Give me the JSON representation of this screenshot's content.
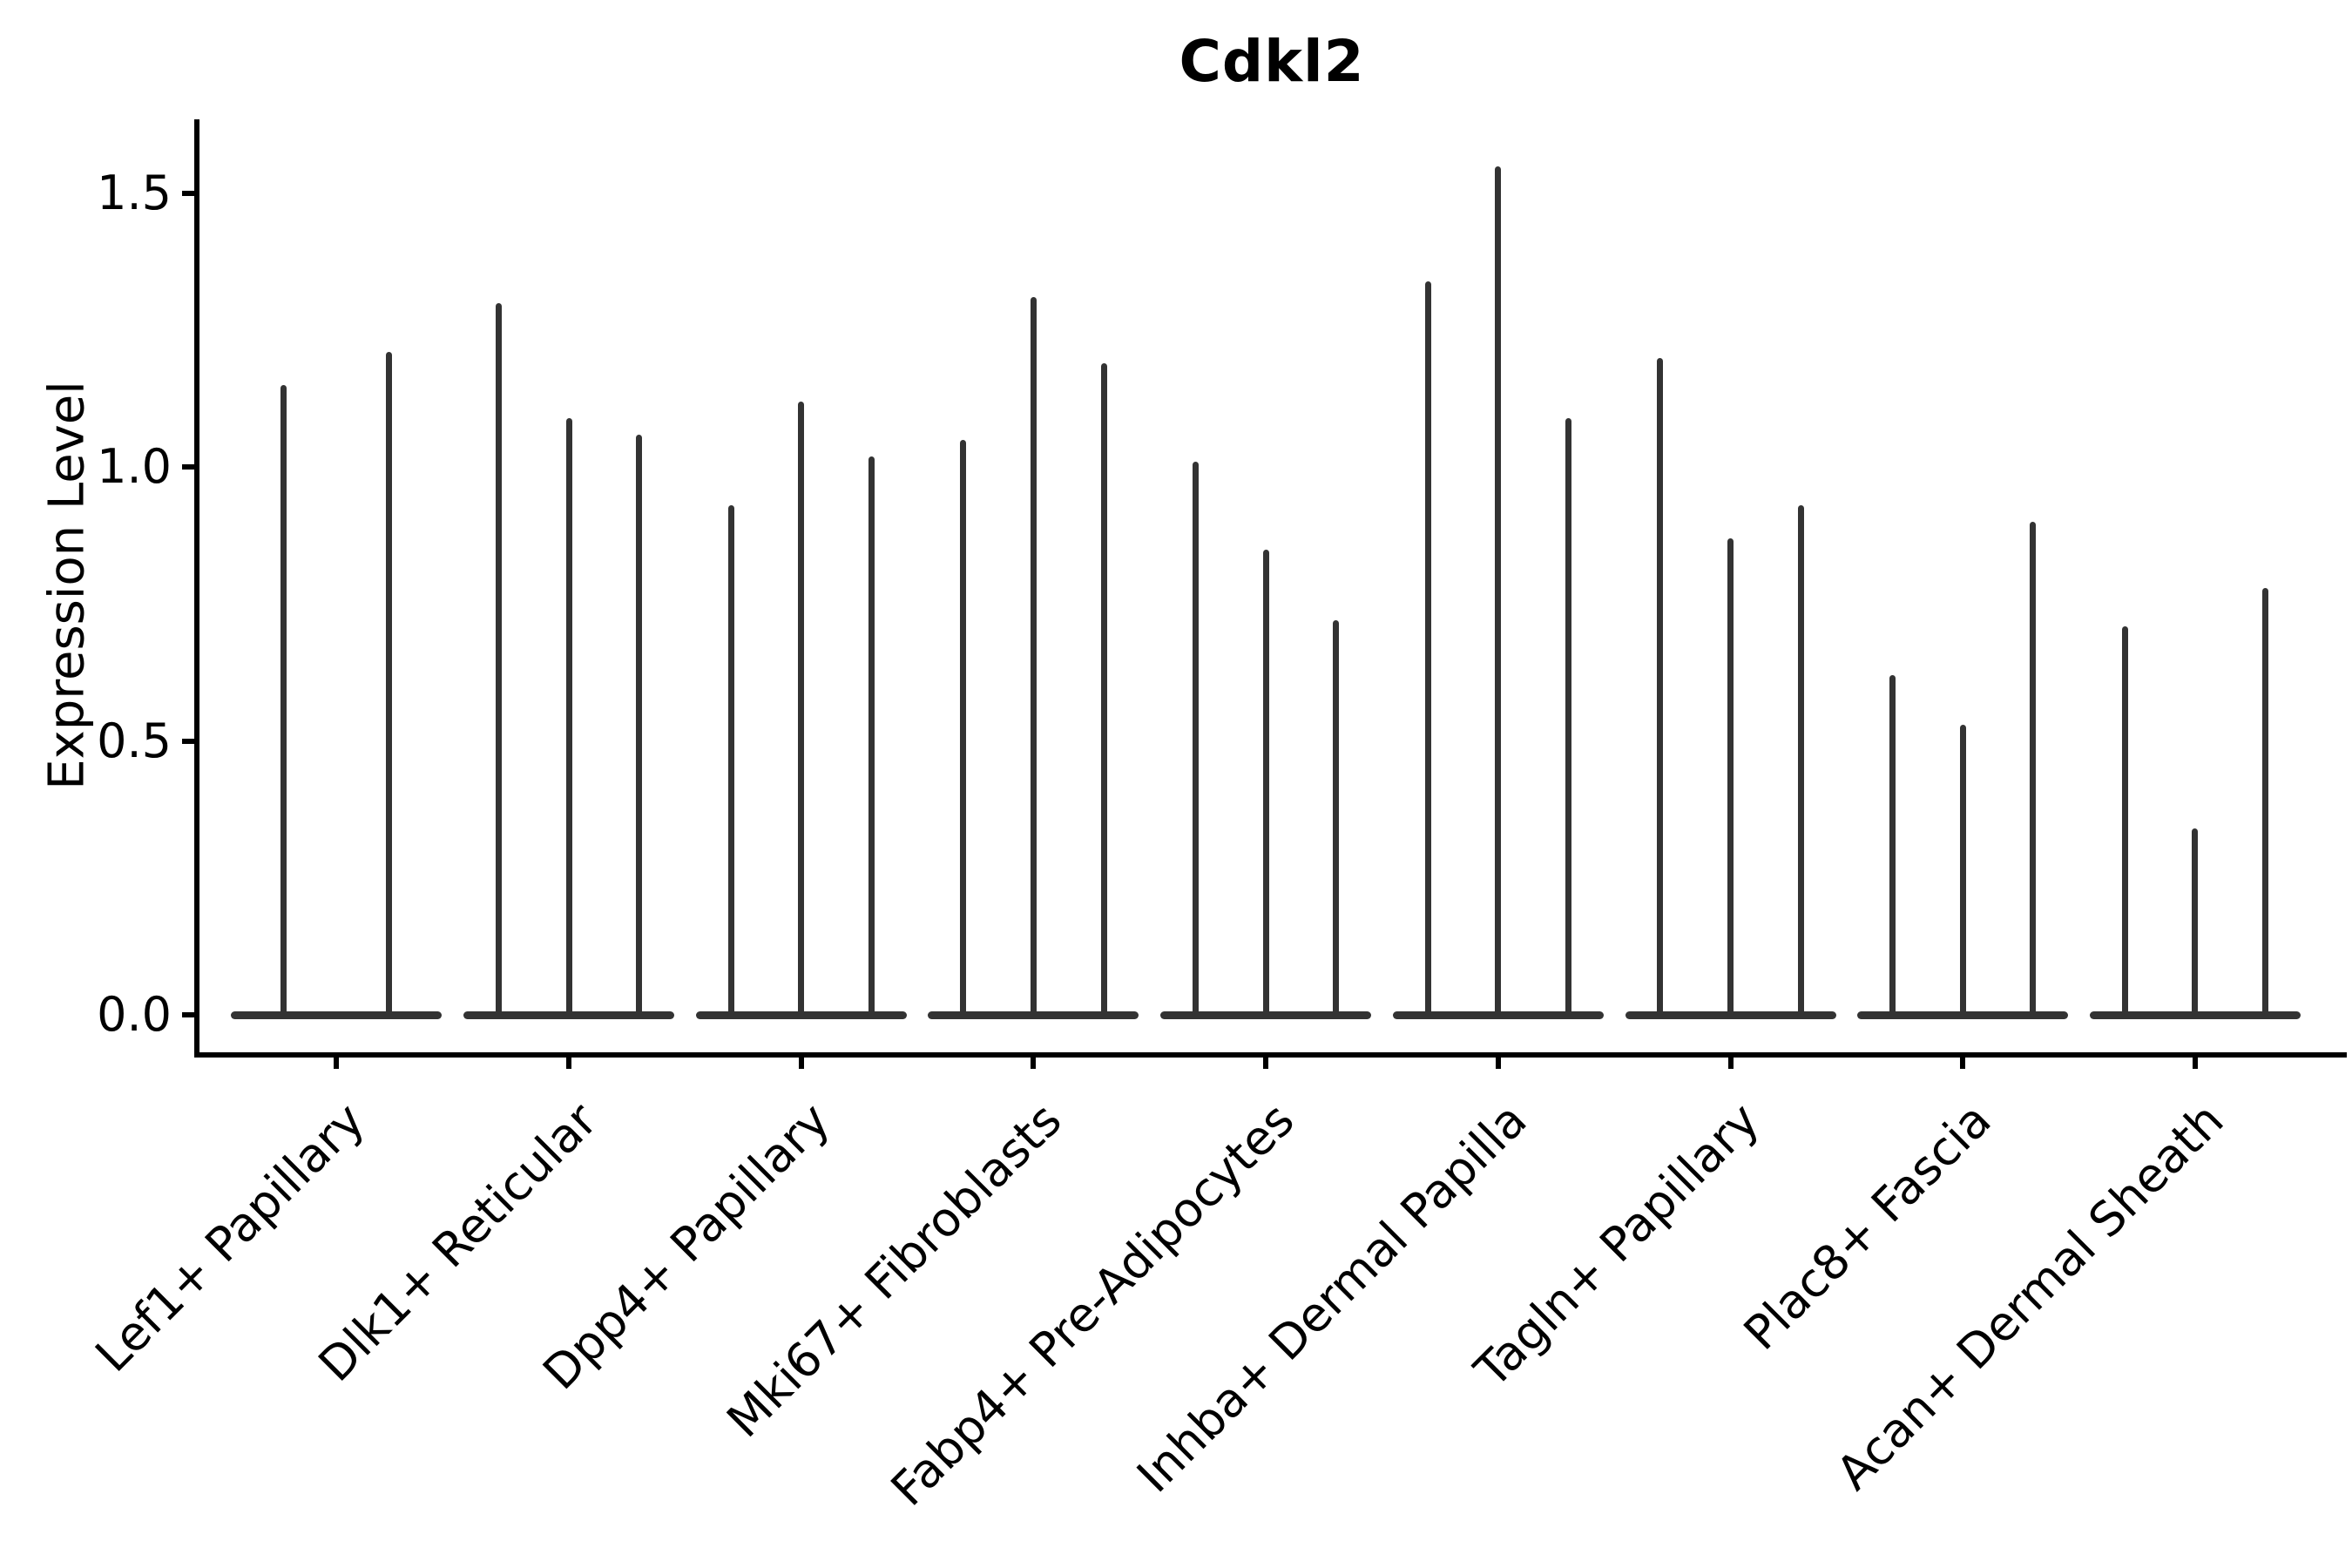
{
  "chart_data": {
    "type": "violin",
    "title": "Cdkl2",
    "ylabel": "Expression Level",
    "xlabel": "",
    "ylim": [
      0,
      1.62
    ],
    "yticks": [
      0.0,
      0.5,
      1.0,
      1.5
    ],
    "ytick_labels": [
      "0.0",
      "0.5",
      "1.0",
      "1.5"
    ],
    "legend": null,
    "grid": false,
    "description": "Grouped violin plot of Cdkl2 expression; violins are needle-thin spikes rising from a flat dense bulge at expression 0. Each category contains multiple violins; listed values are the maximum expression (top of each spike).",
    "categories": [
      "Lef1+ Papillary",
      "Dlk1+ Reticular",
      "Dpp4+ Papillary",
      "Mki67+ Fibroblasts",
      "Fabp4+ Pre-Adipocytes",
      "Inhba+ Dermal Papilla",
      "Tagln+ Papillary",
      "Plac8+ Fascia",
      "Acan+ Dermal Sheath"
    ],
    "groups": [
      {
        "category": "Lef1+ Papillary",
        "violin_maxima": [
          1.15,
          1.21
        ]
      },
      {
        "category": "Dlk1+ Reticular",
        "violin_maxima": [
          1.3,
          1.09,
          1.06
        ]
      },
      {
        "category": "Dpp4+ Papillary",
        "violin_maxima": [
          0.93,
          1.12,
          1.02
        ]
      },
      {
        "category": "Mki67+ Fibroblasts",
        "violin_maxima": [
          1.05,
          1.31,
          1.19
        ]
      },
      {
        "category": "Fabp4+ Pre-Adipocytes",
        "violin_maxima": [
          1.01,
          0.85,
          0.72
        ]
      },
      {
        "category": "Inhba+ Dermal Papilla",
        "violin_maxima": [
          1.34,
          1.55,
          1.09
        ]
      },
      {
        "category": "Tagln+ Papillary",
        "violin_maxima": [
          1.2,
          0.87,
          0.93
        ]
      },
      {
        "category": "Plac8+ Fascia",
        "violin_maxima": [
          0.62,
          0.53,
          0.9
        ]
      },
      {
        "category": "Acan+ Dermal Sheath",
        "violin_maxima": [
          0.71,
          0.34,
          0.78
        ]
      }
    ],
    "style": {
      "violin_color": "#333333",
      "axis_color": "#000000",
      "background": "#ffffff"
    }
  }
}
